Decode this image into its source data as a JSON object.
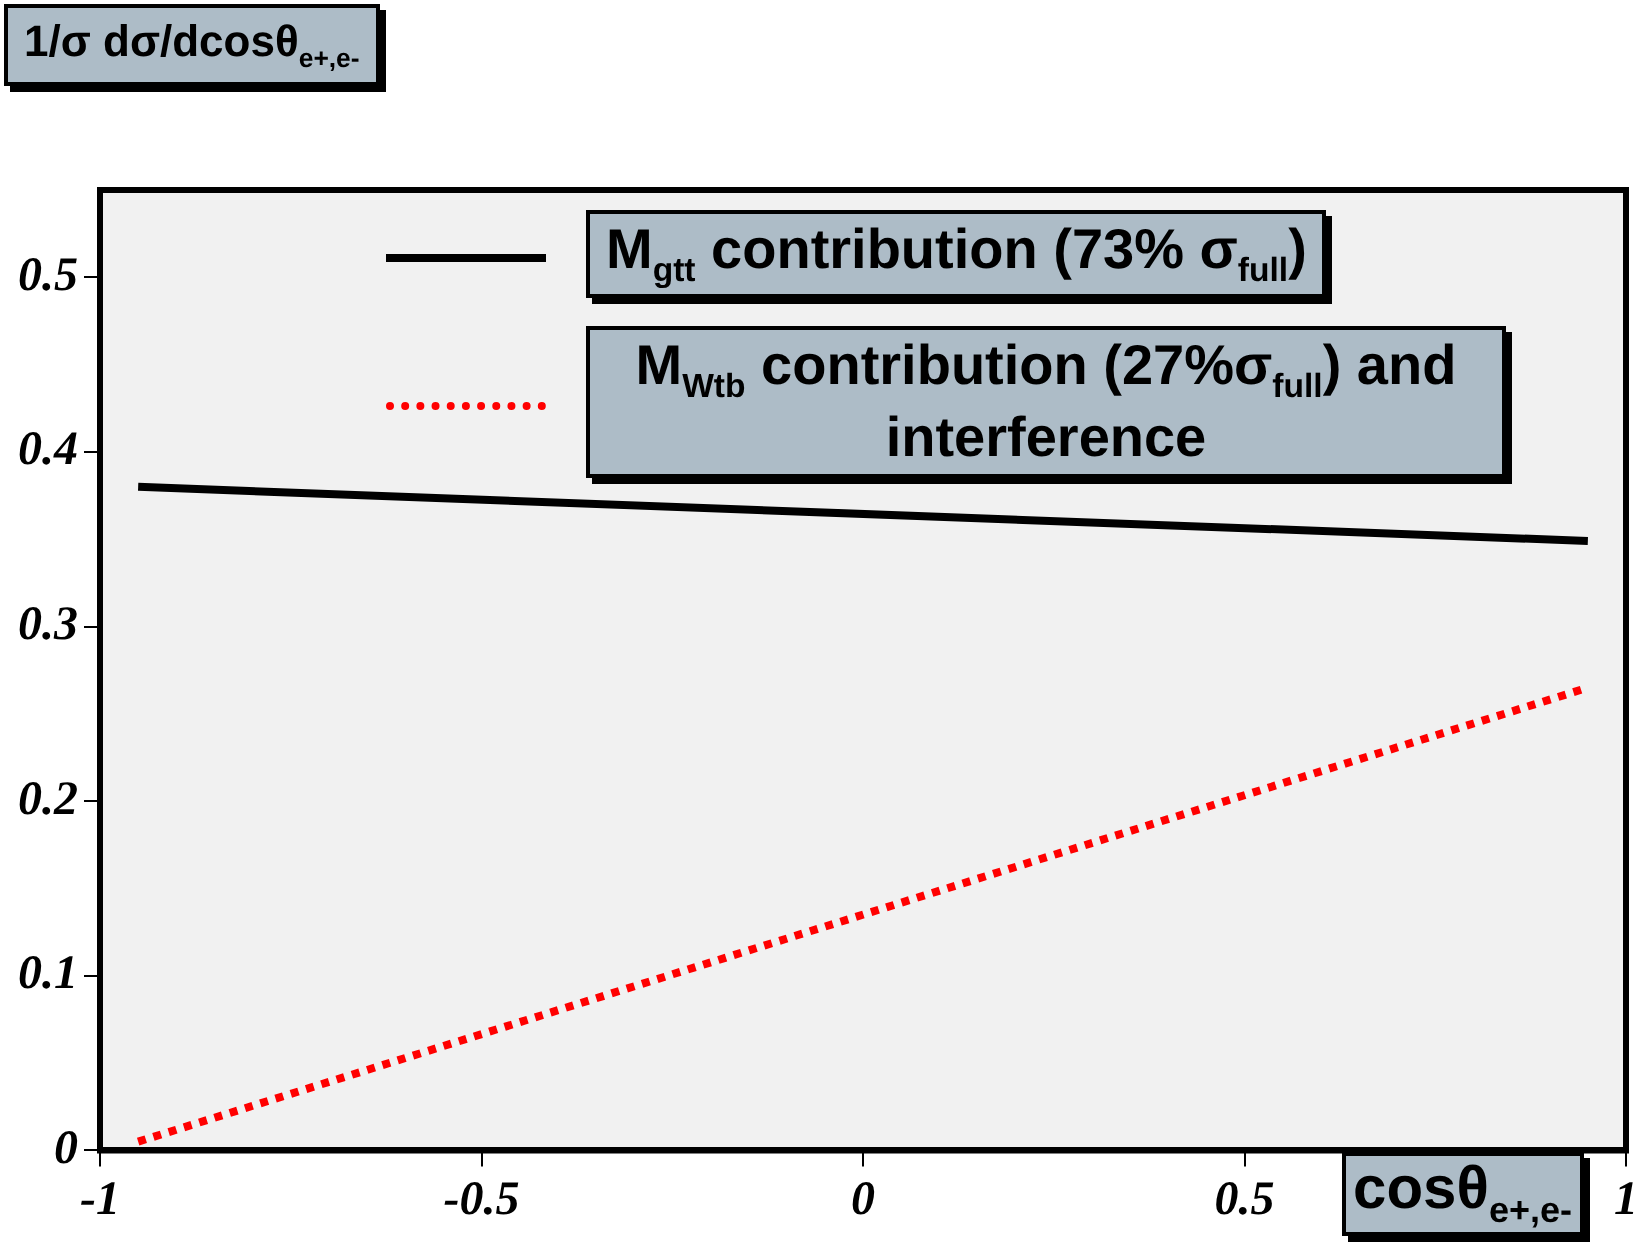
{
  "chart_data": {
    "type": "line",
    "xlabel": "cosθ$_{e+,e-}$",
    "ylabel": "1/σ dσ/dcosθ$_{e+,e-}$",
    "x": [
      -0.95,
      0.95
    ],
    "xlim": [
      -1,
      1
    ],
    "xticks": [
      -1,
      -0.5,
      0,
      0.5,
      1
    ],
    "ylim": [
      0,
      0.55
    ],
    "yticks": [
      0,
      0.1,
      0.2,
      0.3,
      0.4,
      0.5
    ],
    "grid": false,
    "legend": "top right",
    "marker": "none",
    "series": [
      {
        "name": "M$_{gtt}$ contribution (73% σ$_{full}$)",
        "color": "#000000",
        "line_style": "solid",
        "values": [
          0.38,
          0.349
        ]
      },
      {
        "name": "M$_{Wtb}$ contribution (27%σ$_{full}$) and interference",
        "color": "#ff0000",
        "line_style": "dotted",
        "values": [
          0.005,
          0.265
        ]
      }
    ]
  }
}
